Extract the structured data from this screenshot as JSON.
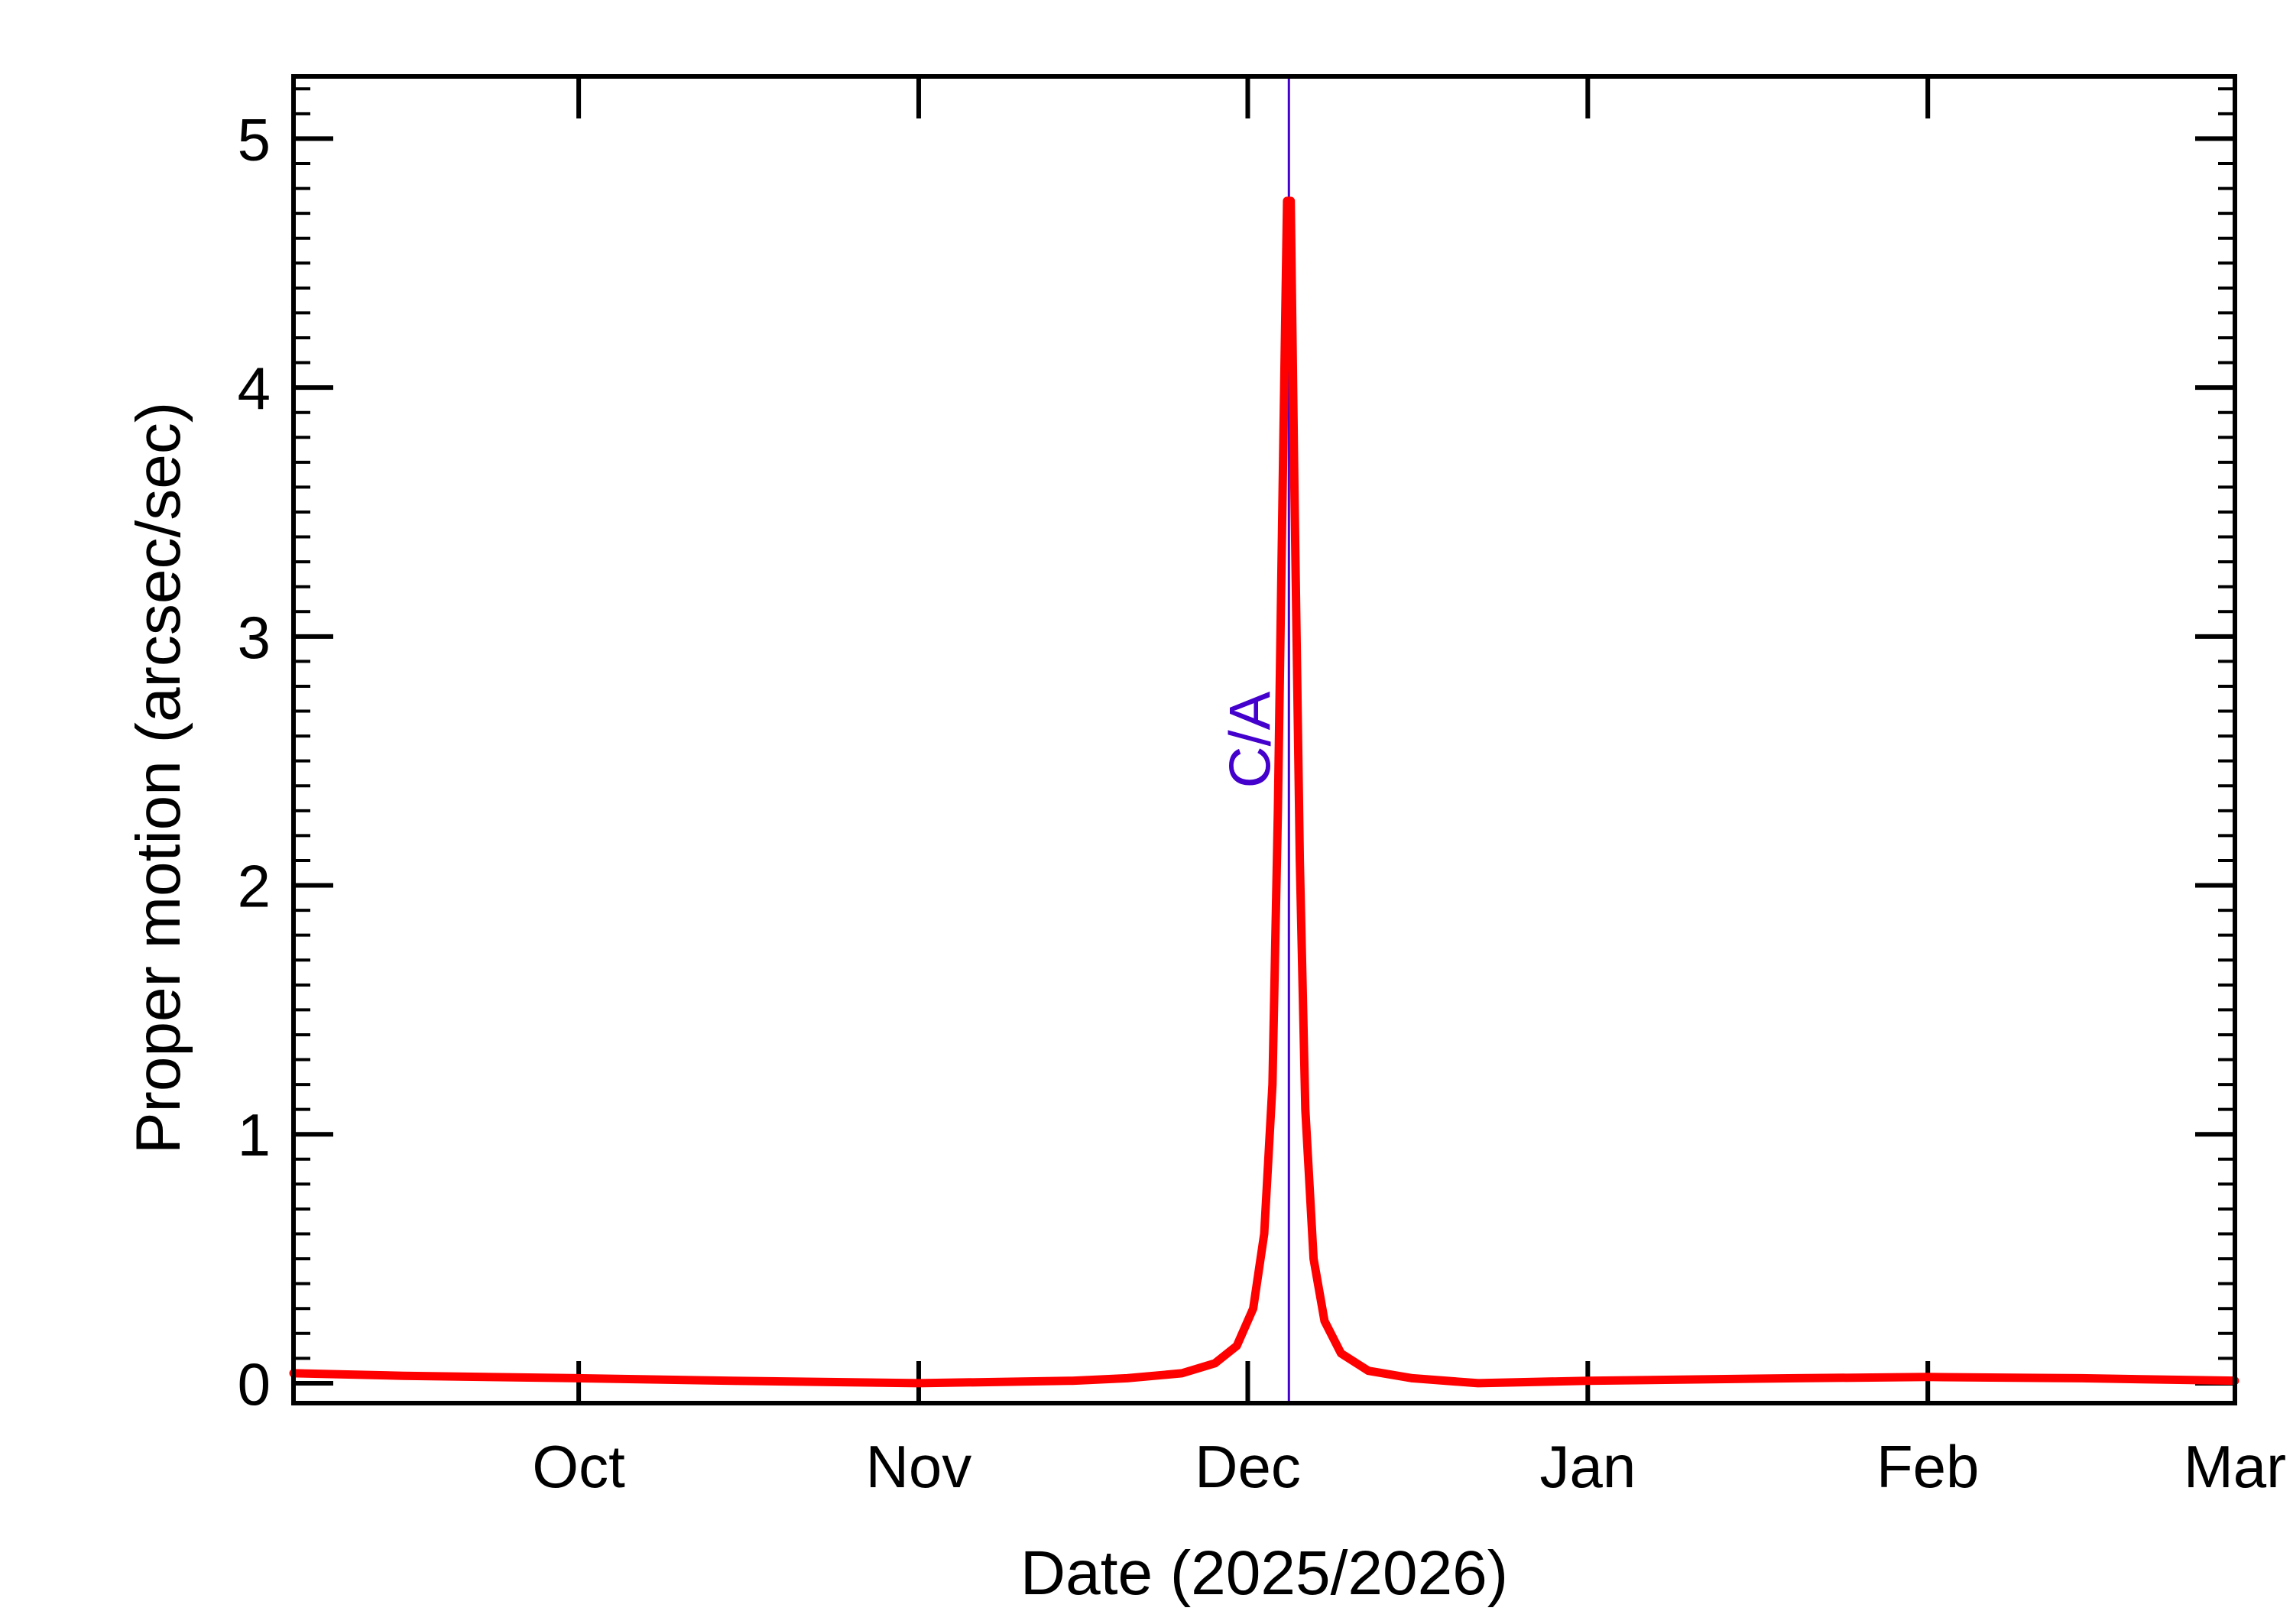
{
  "chart_data": {
    "type": "line",
    "title": "",
    "xlabel": "Date (2025/2026)",
    "ylabel": "Proper motion (arcsec/sec)",
    "xlim": [
      "2025-09-05",
      "2026-03-01"
    ],
    "ylim": [
      -0.08,
      5.25
    ],
    "x_ticks": [
      {
        "date": "2025-10-01",
        "label": "Oct"
      },
      {
        "date": "2025-11-01",
        "label": "Nov"
      },
      {
        "date": "2025-12-01",
        "label": "Dec"
      },
      {
        "date": "2026-01-01",
        "label": "Jan"
      },
      {
        "date": "2026-02-01",
        "label": "Feb"
      },
      {
        "date": "2026-03-01",
        "label": "Mar"
      }
    ],
    "y_ticks": [
      0,
      1,
      2,
      3,
      4,
      5
    ],
    "grid": false,
    "colors": {
      "series": "#ff0000",
      "annotation": "#4400cc",
      "axes": "#000000"
    },
    "annotations": [
      {
        "label": "C/A",
        "date": "2025-12-04T18:00",
        "color": "#4400cc"
      }
    ],
    "series": [
      {
        "points": [
          {
            "date": "2025-09-05",
            "value": 0.04
          },
          {
            "date": "2025-09-15",
            "value": 0.03
          },
          {
            "date": "2025-10-01",
            "value": 0.02
          },
          {
            "date": "2025-10-15",
            "value": 0.01
          },
          {
            "date": "2025-11-01",
            "value": 0.0
          },
          {
            "date": "2025-11-15",
            "value": 0.01
          },
          {
            "date": "2025-11-20",
            "value": 0.02
          },
          {
            "date": "2025-11-25",
            "value": 0.04
          },
          {
            "date": "2025-11-28",
            "value": 0.08
          },
          {
            "date": "2025-11-30",
            "value": 0.15
          },
          {
            "date": "2025-12-01T12:00",
            "value": 0.3
          },
          {
            "date": "2025-12-02T12:00",
            "value": 0.6
          },
          {
            "date": "2025-12-03T06:00",
            "value": 1.2
          },
          {
            "date": "2025-12-03T18:00",
            "value": 2.3
          },
          {
            "date": "2025-12-04T06:00",
            "value": 3.8
          },
          {
            "date": "2025-12-04T14:00",
            "value": 4.75
          },
          {
            "date": "2025-12-04T22:00",
            "value": 4.75
          },
          {
            "date": "2025-12-05T06:00",
            "value": 3.6
          },
          {
            "date": "2025-12-05T18:00",
            "value": 2.1
          },
          {
            "date": "2025-12-06T06:00",
            "value": 1.1
          },
          {
            "date": "2025-12-07T00:00",
            "value": 0.5
          },
          {
            "date": "2025-12-08T00:00",
            "value": 0.25
          },
          {
            "date": "2025-12-09T12:00",
            "value": 0.12
          },
          {
            "date": "2025-12-12",
            "value": 0.05
          },
          {
            "date": "2025-12-16",
            "value": 0.02
          },
          {
            "date": "2025-12-22",
            "value": 0.0
          },
          {
            "date": "2026-01-01",
            "value": 0.01
          },
          {
            "date": "2026-01-20",
            "value": 0.02
          },
          {
            "date": "2026-02-01",
            "value": 0.025
          },
          {
            "date": "2026-02-15",
            "value": 0.02
          },
          {
            "date": "2026-03-01",
            "value": 0.01
          }
        ]
      }
    ]
  }
}
